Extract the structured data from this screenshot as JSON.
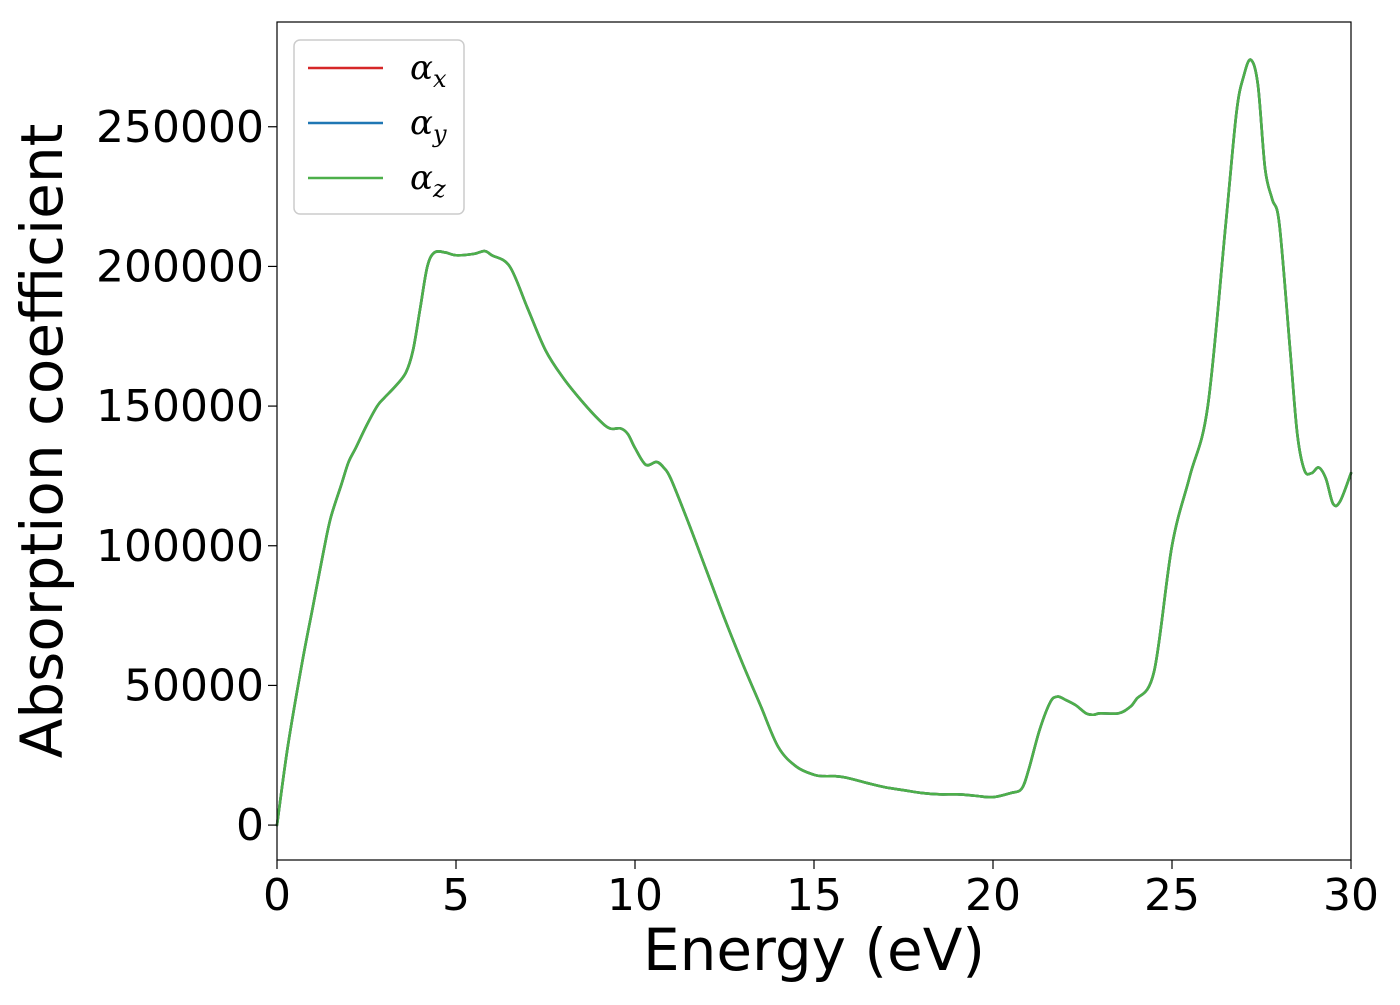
{
  "chart_data": {
    "type": "line",
    "title": "",
    "xlabel": "Energy (eV)",
    "ylabel": "Absorption coefficient",
    "xlim": [
      0,
      30
    ],
    "ylim": [
      -12500,
      287500
    ],
    "xticks": [
      0,
      5,
      10,
      15,
      20,
      25,
      30
    ],
    "yticks": [
      0,
      50000,
      100000,
      150000,
      200000,
      250000
    ],
    "grid": false,
    "legend": {
      "placement": "top-left",
      "entries": [
        {
          "symbol": "α",
          "sub": "x",
          "color": "#d62728"
        },
        {
          "symbol": "α",
          "sub": "y",
          "color": "#1f77b4"
        },
        {
          "symbol": "α",
          "sub": "z",
          "color": "#4daf4a"
        }
      ]
    },
    "x": [
      0.0,
      0.3,
      0.7,
      1.0,
      1.3,
      1.5,
      1.8,
      2.0,
      2.2,
      2.5,
      2.8,
      3.0,
      3.3,
      3.6,
      3.8,
      4.0,
      4.2,
      4.4,
      4.7,
      5.0,
      5.5,
      5.8,
      6.0,
      6.5,
      7.0,
      7.5,
      8.0,
      8.5,
      9.0,
      9.3,
      9.6,
      9.8,
      10.0,
      10.3,
      10.6,
      10.8,
      11.0,
      11.5,
      12.0,
      12.5,
      13.0,
      13.5,
      14.0,
      14.5,
      15.0,
      15.3,
      15.6,
      15.9,
      16.5,
      17.0,
      17.5,
      18.0,
      18.5,
      19.0,
      19.5,
      20.0,
      20.5,
      20.8,
      21.0,
      21.3,
      21.6,
      21.8,
      22.0,
      22.3,
      22.6,
      22.8,
      23.0,
      23.5,
      23.8,
      24.0,
      24.5,
      25.0,
      25.5,
      26.0,
      26.5,
      26.8,
      27.0,
      27.2,
      27.4,
      27.6,
      27.8,
      28.0,
      28.3,
      28.5,
      28.7,
      28.9,
      29.1,
      29.3,
      29.5,
      29.7,
      30.0
    ],
    "series": [
      {
        "name": "αx",
        "color": "#d62728",
        "values": [
          0,
          28000,
          58000,
          78000,
          98000,
          110000,
          122000,
          130000,
          135000,
          143000,
          150000,
          153000,
          157000,
          162000,
          170000,
          185000,
          200000,
          205000,
          205000,
          204000,
          204500,
          205500,
          204000,
          200000,
          185000,
          170000,
          160000,
          152000,
          145000,
          142000,
          142000,
          140000,
          135000,
          129000,
          130000,
          128000,
          124000,
          108000,
          91000,
          74000,
          58000,
          43000,
          28000,
          21000,
          18000,
          17500,
          17500,
          17000,
          15000,
          13500,
          12500,
          11500,
          11000,
          11000,
          10500,
          10000,
          11500,
          13000,
          20000,
          34000,
          44000,
          46000,
          45000,
          43000,
          40000,
          39500,
          40000,
          40000,
          42000,
          45000,
          55000,
          100000,
          125000,
          150000,
          215000,
          255000,
          268000,
          274000,
          265000,
          235000,
          224000,
          215000,
          170000,
          140000,
          127000,
          126000,
          128000,
          124000,
          115000,
          116000,
          126000
        ]
      },
      {
        "name": "αy",
        "color": "#1f77b4",
        "values": [
          0,
          28000,
          58000,
          78000,
          98000,
          110000,
          122000,
          130000,
          135000,
          143000,
          150000,
          153000,
          157000,
          162000,
          170000,
          185000,
          200000,
          205000,
          205000,
          204000,
          204500,
          205500,
          204000,
          200000,
          185000,
          170000,
          160000,
          152000,
          145000,
          142000,
          142000,
          140000,
          135000,
          129000,
          130000,
          128000,
          124000,
          108000,
          91000,
          74000,
          58000,
          43000,
          28000,
          21000,
          18000,
          17500,
          17500,
          17000,
          15000,
          13500,
          12500,
          11500,
          11000,
          11000,
          10500,
          10000,
          11500,
          13000,
          20000,
          34000,
          44000,
          46000,
          45000,
          43000,
          40000,
          39500,
          40000,
          40000,
          42000,
          45000,
          55000,
          100000,
          125000,
          150000,
          215000,
          255000,
          268000,
          274000,
          265000,
          235000,
          224000,
          215000,
          170000,
          140000,
          127000,
          126000,
          128000,
          124000,
          115000,
          116000,
          126000
        ]
      },
      {
        "name": "αz",
        "color": "#4daf4a",
        "values": [
          0,
          28000,
          58000,
          78000,
          98000,
          110000,
          122000,
          130000,
          135000,
          143000,
          150000,
          153000,
          157000,
          162000,
          170000,
          185000,
          200000,
          205000,
          205000,
          204000,
          204500,
          205500,
          204000,
          200000,
          185000,
          170000,
          160000,
          152000,
          145000,
          142000,
          142000,
          140000,
          135000,
          129000,
          130000,
          128000,
          124000,
          108000,
          91000,
          74000,
          58000,
          43000,
          28000,
          21000,
          18000,
          17500,
          17500,
          17000,
          15000,
          13500,
          12500,
          11500,
          11000,
          11000,
          10500,
          10000,
          11500,
          13000,
          20000,
          34000,
          44000,
          46000,
          45000,
          43000,
          40000,
          39500,
          40000,
          40000,
          42000,
          45000,
          55000,
          100000,
          125000,
          150000,
          215000,
          255000,
          268000,
          274000,
          265000,
          235000,
          224000,
          215000,
          170000,
          140000,
          127000,
          126000,
          128000,
          124000,
          115000,
          116000,
          126000
        ]
      }
    ]
  }
}
